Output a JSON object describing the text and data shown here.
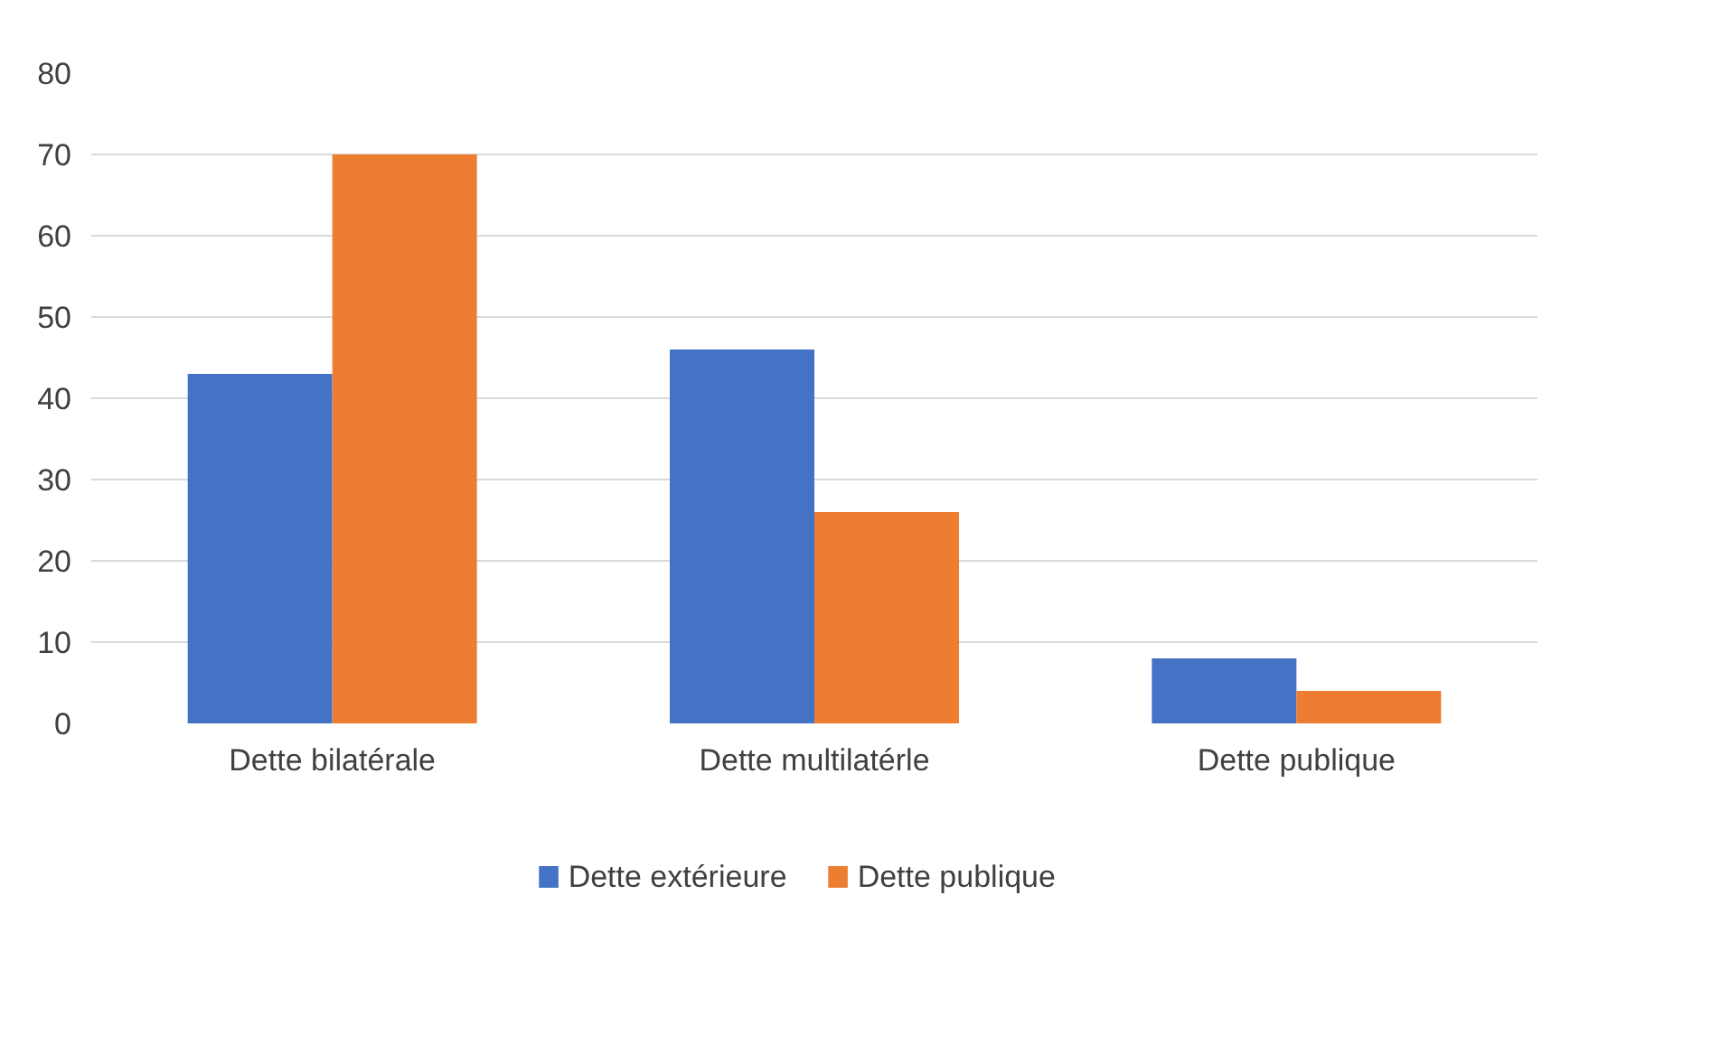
{
  "chart_data": {
    "type": "bar",
    "categories": [
      "Dette bilatérale",
      "Dette multilatérle",
      "Dette publique"
    ],
    "series": [
      {
        "name": "Dette extérieure",
        "color": "#4472c4",
        "values": [
          43,
          46,
          8
        ]
      },
      {
        "name": "Dette publique",
        "color": "#ed7d31",
        "values": [
          70,
          26,
          4
        ]
      }
    ],
    "ylim": [
      0,
      80
    ],
    "yticks": [
      0,
      10,
      20,
      30,
      40,
      50,
      60,
      70,
      80
    ],
    "grid": "y",
    "legend": "bottom"
  }
}
